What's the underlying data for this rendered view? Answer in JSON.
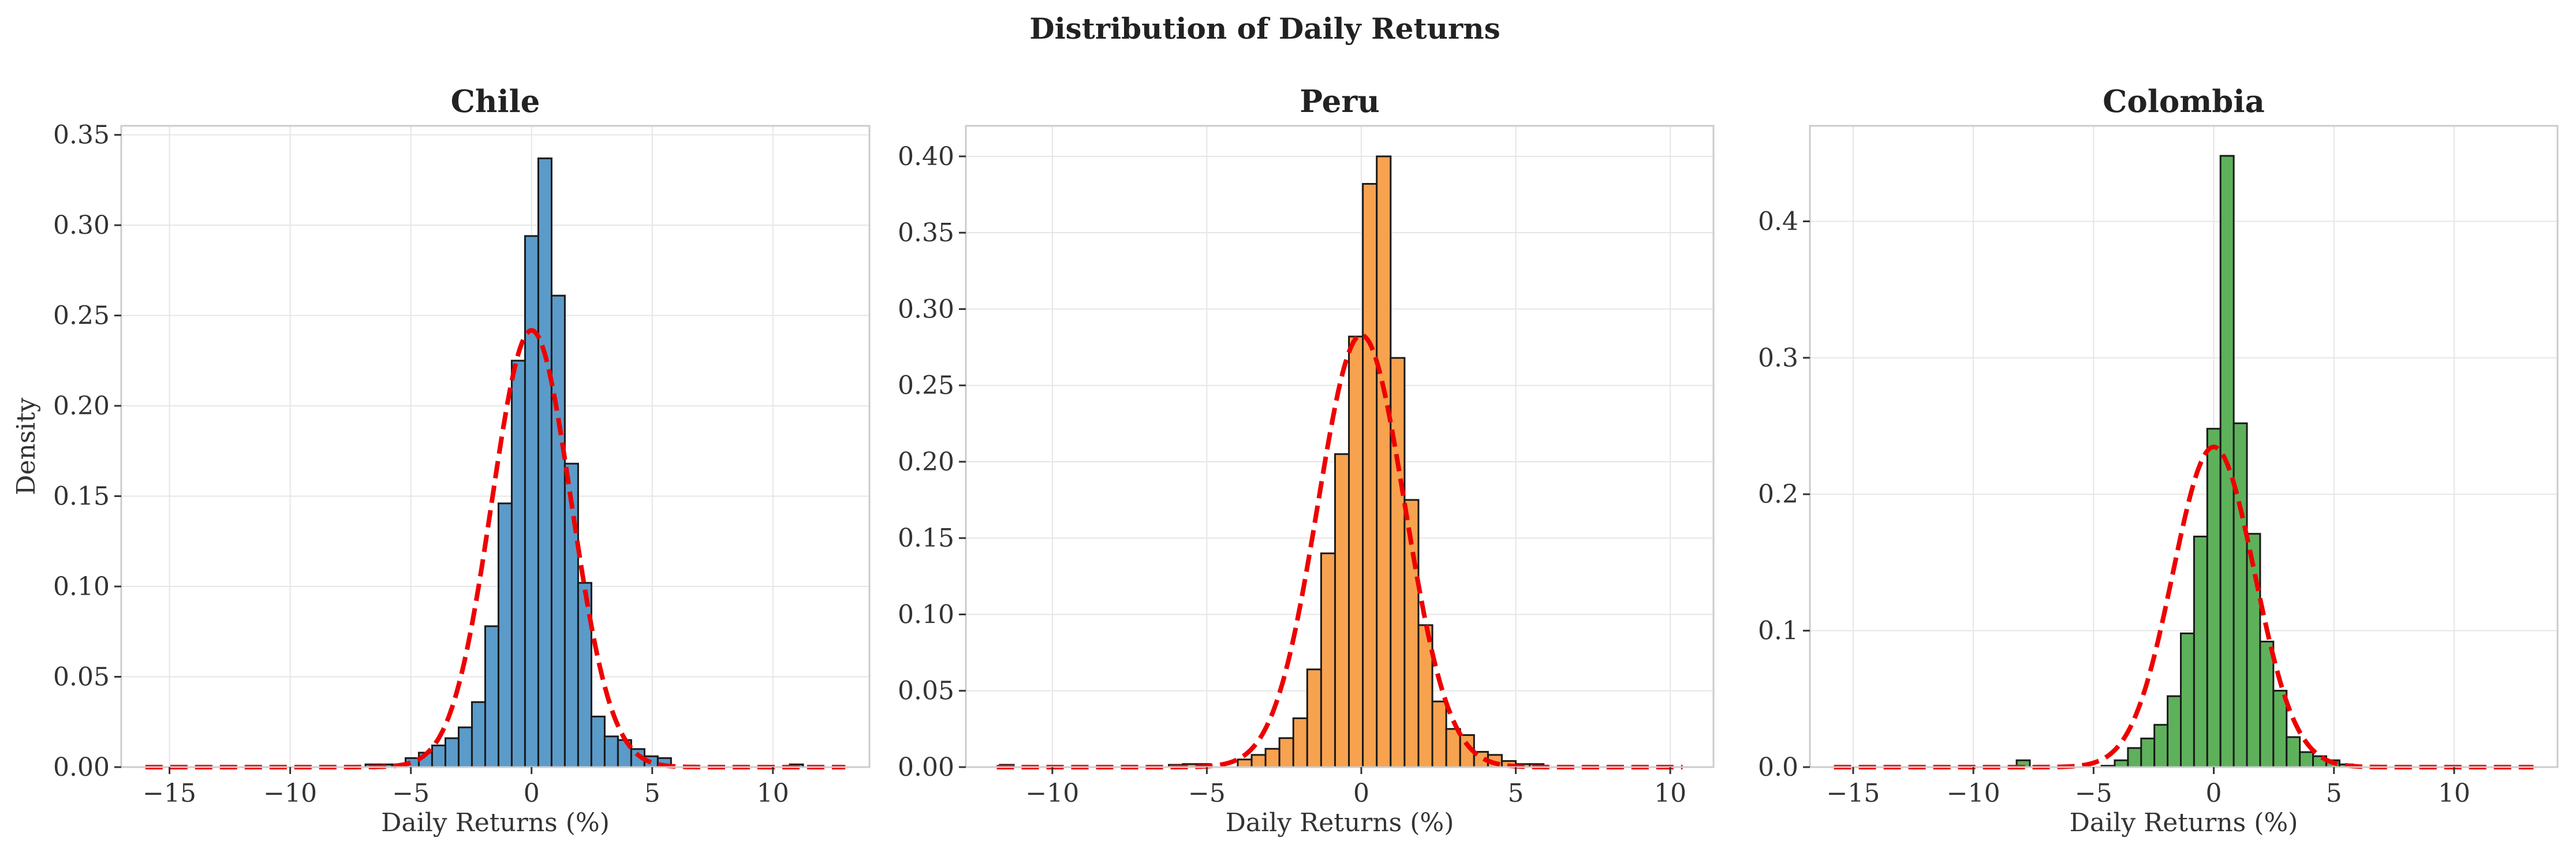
{
  "chart_data": {
    "title": "Distribution of Daily Returns",
    "panels": [
      {
        "type": "bar",
        "title": "Chile",
        "xlabel": "Daily Returns (%)",
        "ylabel": "Density",
        "color": "#5b9bc9",
        "xlim": [
          -17,
          14
        ],
        "ylim": [
          0,
          0.355
        ],
        "xticks": [
          -15,
          -10,
          -5,
          0,
          5,
          10
        ],
        "xtick_labels": [
          "−15",
          "−10",
          "−5",
          "0",
          "5",
          "10"
        ],
        "yticks": [
          0,
          0.05,
          0.1,
          0.15,
          0.2,
          0.25,
          0.3,
          0.35
        ],
        "ytick_labels": [
          "0.00",
          "0.05",
          "0.10",
          "0.15",
          "0.20",
          "0.25",
          "0.30",
          "0.35"
        ],
        "bin_width": 0.55,
        "bins": [
          [
            -6.88,
            0.0015
          ],
          [
            -6.33,
            0.0015
          ],
          [
            -5.77,
            0.0015
          ],
          [
            -5.22,
            0.005
          ],
          [
            -4.67,
            0.008
          ],
          [
            -4.12,
            0.012
          ],
          [
            -3.57,
            0.016
          ],
          [
            -3.02,
            0.022
          ],
          [
            -2.47,
            0.036
          ],
          [
            -1.92,
            0.078
          ],
          [
            -1.37,
            0.146
          ],
          [
            -0.82,
            0.225
          ],
          [
            -0.27,
            0.294
          ],
          [
            0.28,
            0.337
          ],
          [
            0.83,
            0.261
          ],
          [
            1.38,
            0.168
          ],
          [
            1.93,
            0.102
          ],
          [
            2.48,
            0.028
          ],
          [
            3.03,
            0.017
          ],
          [
            3.58,
            0.015
          ],
          [
            4.13,
            0.01
          ],
          [
            4.68,
            0.006
          ],
          [
            5.23,
            0.005
          ],
          [
            10.7,
            0.0015
          ]
        ],
        "fit": {
          "mu": 0.0,
          "sigma": 1.65
        }
      },
      {
        "type": "bar",
        "title": "Peru",
        "xlabel": "Daily Returns (%)",
        "ylabel": "",
        "color": "#f7a24f",
        "xlim": [
          -12.8,
          11.4
        ],
        "ylim": [
          0,
          0.42
        ],
        "xticks": [
          -10,
          -5,
          0,
          5,
          10
        ],
        "xtick_labels": [
          "−10",
          "−5",
          "0",
          "5",
          "10"
        ],
        "yticks": [
          0,
          0.05,
          0.1,
          0.15,
          0.2,
          0.25,
          0.3,
          0.35,
          0.4
        ],
        "ytick_labels": [
          "0.00",
          "0.05",
          "0.10",
          "0.15",
          "0.20",
          "0.25",
          "0.30",
          "0.35",
          "0.40"
        ],
        "bin_width": 0.45,
        "bins": [
          [
            -11.7,
            0.0015
          ],
          [
            -6.23,
            0.0015
          ],
          [
            -5.78,
            0.002
          ],
          [
            -5.33,
            0.002
          ],
          [
            -4.0,
            0.005
          ],
          [
            -3.55,
            0.008
          ],
          [
            -3.1,
            0.012
          ],
          [
            -2.65,
            0.019
          ],
          [
            -2.2,
            0.032
          ],
          [
            -1.75,
            0.064
          ],
          [
            -1.3,
            0.14
          ],
          [
            -0.85,
            0.205
          ],
          [
            -0.4,
            0.282
          ],
          [
            0.05,
            0.382
          ],
          [
            0.5,
            0.4
          ],
          [
            0.95,
            0.268
          ],
          [
            1.4,
            0.175
          ],
          [
            1.85,
            0.093
          ],
          [
            2.3,
            0.043
          ],
          [
            2.75,
            0.025
          ],
          [
            3.2,
            0.021
          ],
          [
            3.65,
            0.01
          ],
          [
            4.1,
            0.008
          ],
          [
            4.55,
            0.004
          ],
          [
            5.0,
            0.002
          ],
          [
            5.45,
            0.002
          ]
        ],
        "fit": {
          "mu": 0.0,
          "sigma": 1.41
        }
      },
      {
        "type": "bar",
        "title": "Colombia",
        "xlabel": "Daily Returns (%)",
        "ylabel": "",
        "color": "#5eb15b",
        "xlim": [
          -16.8,
          14.3
        ],
        "ylim": [
          0,
          0.47
        ],
        "xticks": [
          -15,
          -10,
          -5,
          0,
          5,
          10
        ],
        "xtick_labels": [
          "−15",
          "−10",
          "−5",
          "0",
          "5",
          "10"
        ],
        "yticks": [
          0,
          0.1,
          0.2,
          0.3,
          0.4
        ],
        "ytick_labels": [
          "0.0",
          "0.1",
          "0.2",
          "0.3",
          "0.4"
        ],
        "bin_width": 0.55,
        "bins": [
          [
            -8.2,
            0.005
          ],
          [
            -4.67,
            0.001
          ],
          [
            -4.12,
            0.005
          ],
          [
            -3.57,
            0.014
          ],
          [
            -3.02,
            0.021
          ],
          [
            -2.47,
            0.031
          ],
          [
            -1.92,
            0.052
          ],
          [
            -1.37,
            0.098
          ],
          [
            -0.82,
            0.169
          ],
          [
            -0.27,
            0.248
          ],
          [
            0.28,
            0.448
          ],
          [
            0.83,
            0.252
          ],
          [
            1.38,
            0.171
          ],
          [
            1.93,
            0.092
          ],
          [
            2.48,
            0.056
          ],
          [
            3.03,
            0.022
          ],
          [
            3.58,
            0.011
          ],
          [
            4.13,
            0.008
          ],
          [
            4.68,
            0.005
          ],
          [
            5.23,
            0.002
          ]
        ],
        "fit": {
          "mu": 0.0,
          "sigma": 1.7
        }
      }
    ]
  }
}
